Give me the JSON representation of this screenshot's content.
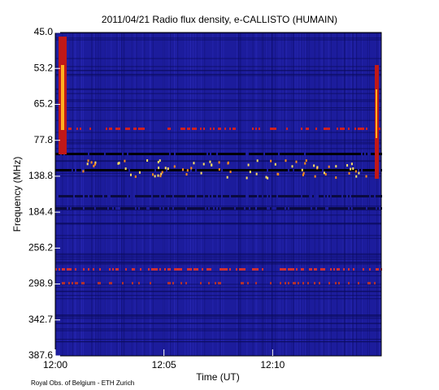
{
  "chart_data": {
    "type": "spectrogram",
    "title": "2011/04/21  Radio flux density, e-CALLISTO (HUMAIN)",
    "x_label": "Time (UT)",
    "y_label": "Frequency (MHz)",
    "footer": "Royal Obs. of Belgium - ETH Zurich",
    "xlim": [
      "12:00",
      "12:15"
    ],
    "xticks": [
      "12:00",
      "12:05",
      "12:10"
    ],
    "yticks": [
      {
        "value": 45.0,
        "label": "45.0"
      },
      {
        "value": 53.2,
        "label": "53.2"
      },
      {
        "value": 65.2,
        "label": "65.2"
      },
      {
        "value": 77.8,
        "label": "77.8"
      },
      {
        "value": 138.8,
        "label": "138.8"
      },
      {
        "value": 184.4,
        "label": "184.4"
      },
      {
        "value": 256.2,
        "label": "256.2"
      },
      {
        "value": 298.9,
        "label": "298.9"
      },
      {
        "value": 342.7,
        "label": "342.7"
      },
      {
        "value": 387.6,
        "label": "387.6"
      }
    ]
  }
}
